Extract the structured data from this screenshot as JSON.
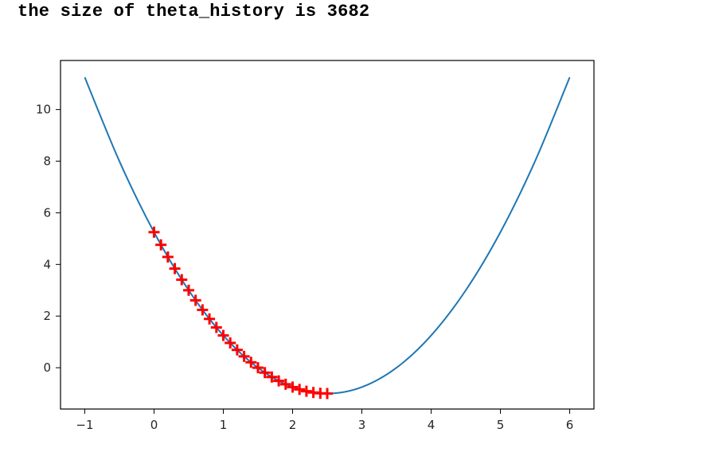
{
  "output": {
    "text": "the size of theta_history is 3682"
  },
  "chart_data": {
    "type": "line",
    "title": "",
    "xlabel": "",
    "ylabel": "",
    "xlim": [
      -1.35,
      6.35
    ],
    "ylim": [
      -1.6,
      11.9
    ],
    "xticks": [
      -1,
      0,
      1,
      2,
      3,
      4,
      5,
      6
    ],
    "xtick_labels": [
      "−1",
      "0",
      "1",
      "2",
      "3",
      "4",
      "5",
      "6"
    ],
    "yticks": [
      0,
      2,
      4,
      6,
      8,
      10
    ],
    "ytick_labels": [
      "0",
      "2",
      "4",
      "6",
      "8",
      "10"
    ],
    "grid": false,
    "series": [
      {
        "style": "line",
        "color": "#1f77b4",
        "x": [
          -1.0,
          -0.5,
          0.0,
          0.5,
          1.0,
          1.5,
          2.0,
          2.5,
          3.0,
          3.5,
          4.0,
          4.5,
          5.0,
          5.5,
          6.0
        ],
        "y": [
          11.25,
          8.0,
          5.25,
          3.0,
          1.25,
          0.0,
          -0.75,
          -1.0,
          -0.75,
          0.0,
          1.25,
          3.0,
          5.25,
          8.0,
          11.25
        ]
      },
      {
        "style": "markers",
        "marker": "+",
        "color": "#ff0000",
        "x": [
          0.0,
          0.1,
          0.2,
          0.3,
          0.4,
          0.5,
          0.6,
          0.7,
          0.8,
          0.9,
          1.0,
          1.1,
          1.2,
          1.3,
          1.4,
          1.5,
          1.6,
          1.7,
          1.8,
          1.9,
          2.0,
          2.1,
          2.2,
          2.3,
          2.4,
          2.5
        ],
        "y": [
          5.25,
          4.76,
          4.29,
          3.84,
          3.41,
          3.0,
          2.61,
          2.24,
          1.89,
          1.56,
          1.25,
          0.96,
          0.69,
          0.44,
          0.21,
          0.0,
          -0.19,
          -0.36,
          -0.51,
          -0.64,
          -0.75,
          -0.84,
          -0.91,
          -0.96,
          -0.99,
          -1.0
        ]
      }
    ]
  }
}
